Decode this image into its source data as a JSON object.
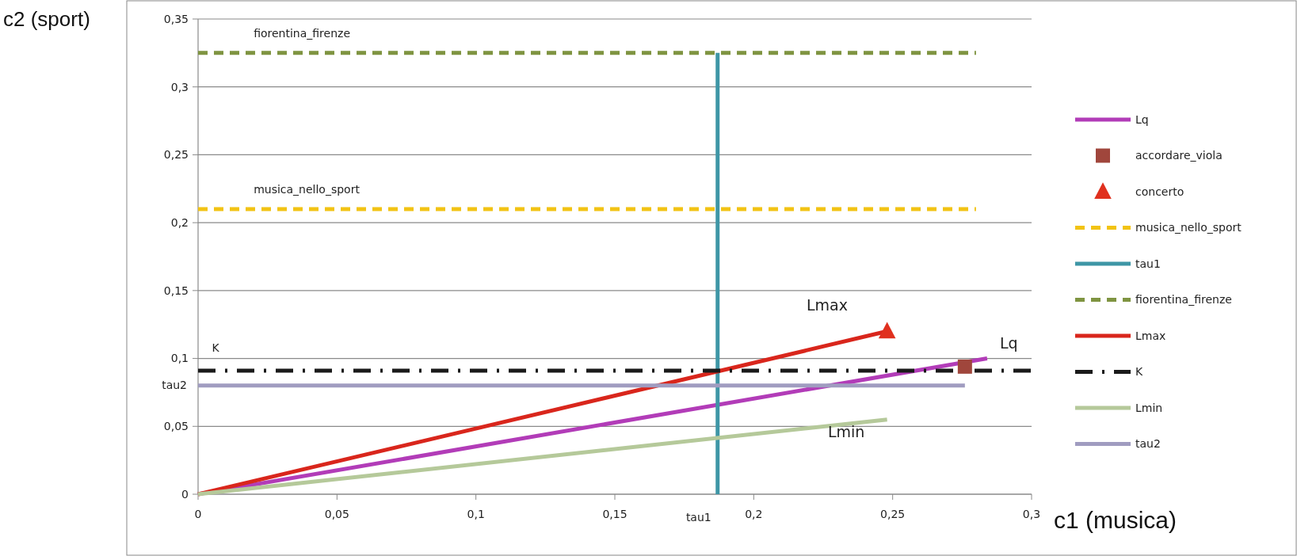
{
  "chart_data": {
    "type": "line",
    "xlabel": "c1 (musica)",
    "ylabel": "c2 (sport)",
    "xlim": [
      0,
      0.3
    ],
    "ylim": [
      0,
      0.35
    ],
    "xticks": [
      0,
      {
        "value": 0.05,
        "label": "0,05"
      },
      {
        "value": 0.1,
        "label": "0,1"
      },
      {
        "value": 0.15,
        "label": "0,15"
      },
      {
        "value": 0.2,
        "label": "0,2"
      },
      {
        "value": 0.25,
        "label": "0,25"
      },
      {
        "value": 0.3,
        "label": "0,3"
      }
    ],
    "yticks": [
      0,
      {
        "value": 0.05,
        "label": "0,05"
      },
      {
        "value": 0.1,
        "label": "0,1"
      },
      {
        "value": 0.15,
        "label": "0,15"
      },
      {
        "value": 0.2,
        "label": "0,2"
      },
      {
        "value": 0.25,
        "label": "0,25"
      },
      {
        "value": 0.3,
        "label": "0,3"
      },
      {
        "value": 0.35,
        "label": "0,35"
      }
    ],
    "grid": "y",
    "legend": "right",
    "marker": "none",
    "series": [
      {
        "name": "Lq",
        "color": "#b23cb8",
        "x": [
          0,
          0.284
        ],
        "values": [
          0,
          0.1
        ]
      },
      {
        "name": "accordare_viola",
        "type": "scatter",
        "marker": "square",
        "color": "#a0463c",
        "x": [
          0.276
        ],
        "values": [
          0.094
        ]
      },
      {
        "name": "concerto",
        "type": "scatter",
        "marker": "triangle",
        "color": "#e0301e",
        "x": [
          0.248
        ],
        "values": [
          0.12
        ]
      },
      {
        "name": "musica_nello_sport",
        "color": "#f2c314",
        "line_style": "dashed",
        "x": [
          0,
          0.28
        ],
        "values": [
          0.21,
          0.21
        ]
      },
      {
        "name": "tau1",
        "color": "#3e96a6",
        "x": [
          0.187,
          0.187
        ],
        "values": [
          0,
          0.325
        ]
      },
      {
        "name": "fiorentina_firenze",
        "color": "#7f9441",
        "line_style": "dashed",
        "x": [
          0,
          0.28
        ],
        "values": [
          0.325,
          0.325
        ]
      },
      {
        "name": "Lmax",
        "color": "#d9261c",
        "x": [
          0,
          0.248
        ],
        "values": [
          0,
          0.12
        ]
      },
      {
        "name": "K",
        "color": "#1a1a1a",
        "line_style": "dashdot",
        "x": [
          0,
          0.3
        ],
        "values": [
          0.091,
          0.091
        ]
      },
      {
        "name": "Lmin",
        "color": "#b5c99a",
        "x": [
          0,
          0.248
        ],
        "values": [
          0,
          0.055
        ]
      },
      {
        "name": "tau2",
        "color": "#a09cc0",
        "x": [
          0,
          0.276
        ],
        "values": [
          0.08,
          0.08
        ]
      }
    ],
    "annotations": [
      {
        "text": "fiorentina_firenze",
        "x": 0.02,
        "y": 0.325
      },
      {
        "text": "musica_nello_sport",
        "x": 0.02,
        "y": 0.21
      },
      {
        "text": "K",
        "x": 0.005,
        "y": 0.091
      },
      "Lmax",
      "Lq",
      "Lmin",
      {
        "text": "tau2",
        "x": 0,
        "y": 0.08
      },
      {
        "text": "tau1",
        "x": 0.187,
        "y": 0
      }
    ]
  }
}
